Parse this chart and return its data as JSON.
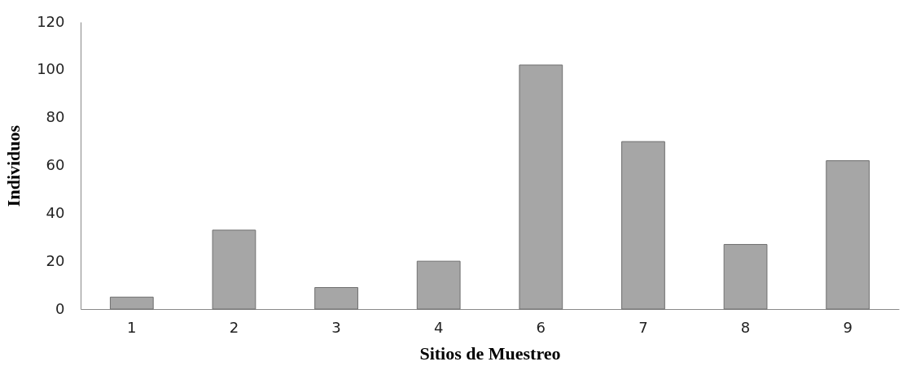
{
  "chart_data": {
    "type": "bar",
    "xlabel": "Sitios de Muestreo",
    "ylabel": "Individuos",
    "categories": [
      "1",
      "2",
      "3",
      "4",
      "6",
      "7",
      "8",
      "9"
    ],
    "values": [
      5,
      33,
      9,
      20,
      102,
      70,
      27,
      62
    ],
    "color": "#a6a6a6",
    "ylim": [
      0,
      120
    ],
    "yticks": [
      0,
      20,
      40,
      60,
      80,
      100,
      120
    ],
    "grid": false
  }
}
